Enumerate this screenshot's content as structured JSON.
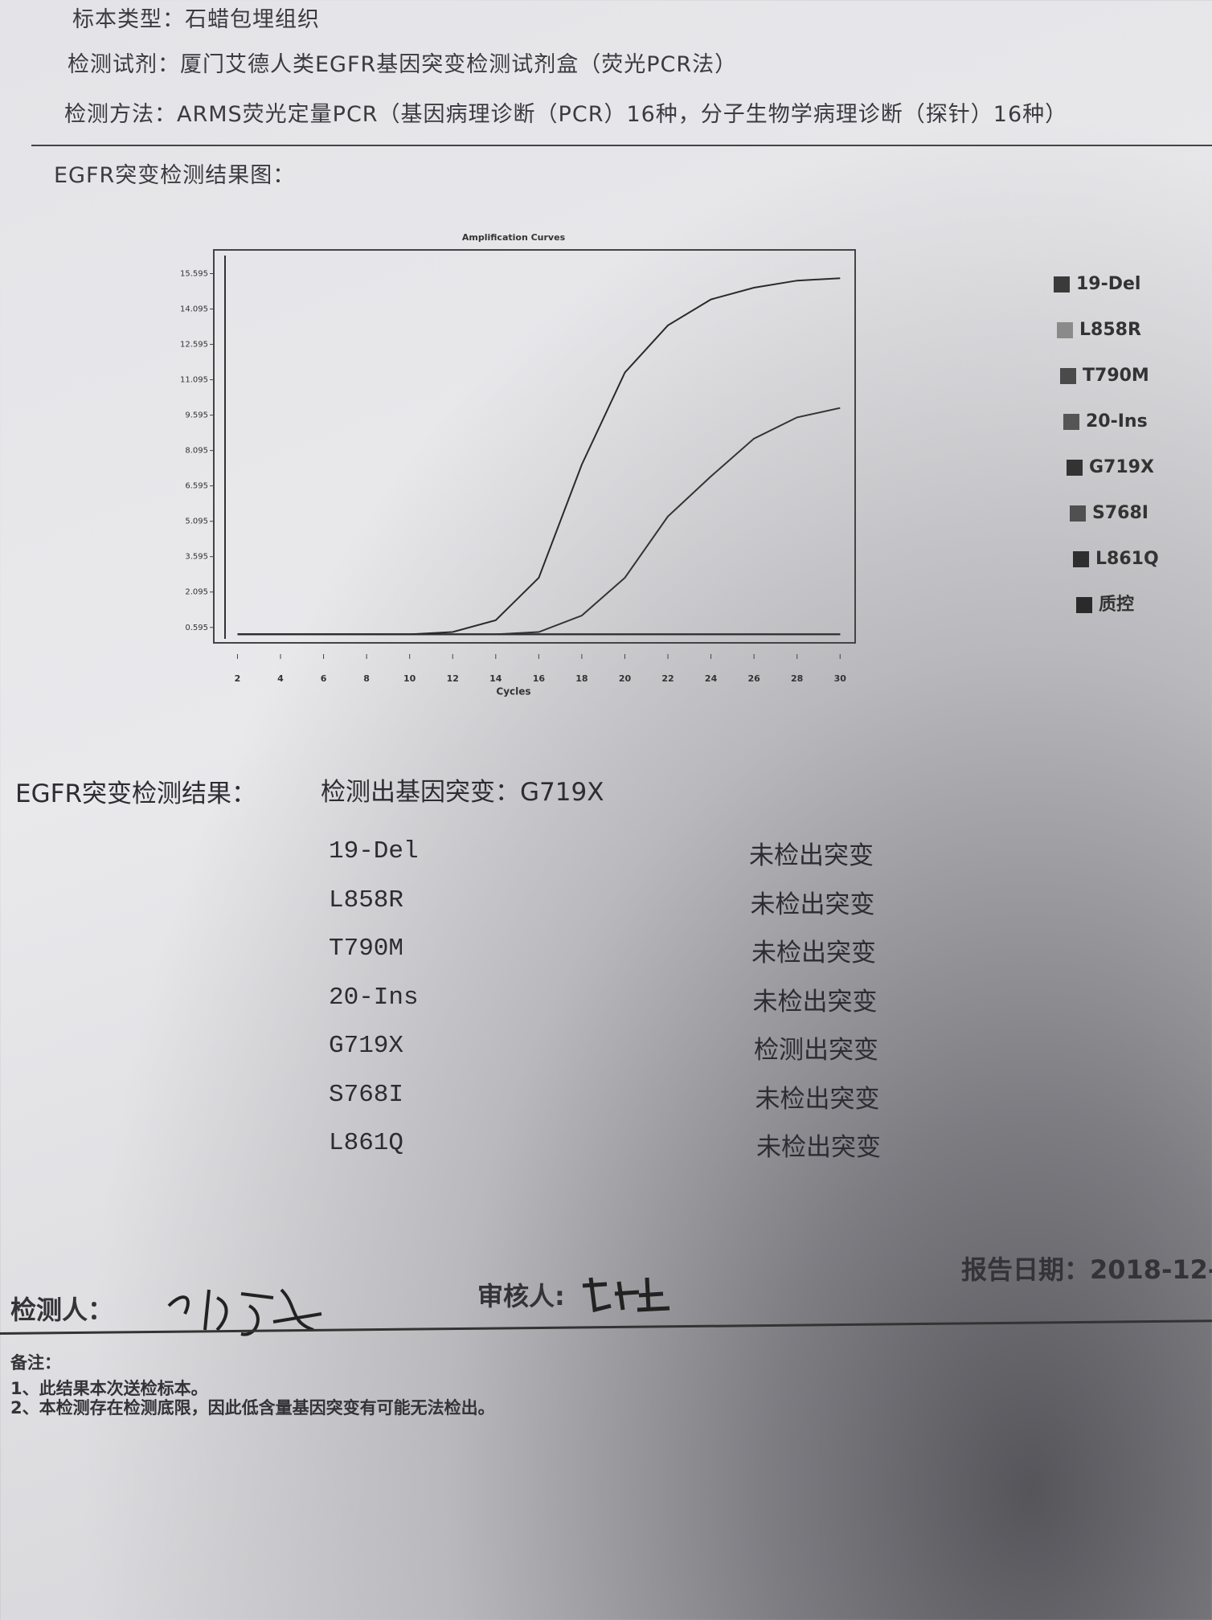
{
  "header": {
    "specimen_type": "标本类型：石蜡包埋组织",
    "reagent": "检测试剂：厦门艾德人类EGFR基因突变检测试剂盒（荧光PCR法）",
    "method": "检测方法：ARMS荧光定量PCR（基因病理诊断（PCR）16种，分子生物学病理诊断（探针）16种）"
  },
  "chart_heading": "EGFR突变检测结果图：",
  "chart_data": {
    "type": "line",
    "title": "Amplification Curves",
    "x_label": "Cycles",
    "x": [
      2,
      4,
      6,
      8,
      10,
      12,
      14,
      16,
      18,
      20,
      22,
      24,
      26,
      28,
      30
    ],
    "xlim": [
      0.9,
      30.7
    ],
    "xticks": [
      2,
      4,
      6,
      8,
      10,
      12,
      14,
      16,
      18,
      20,
      22,
      24,
      26,
      28,
      30
    ],
    "ylim": [
      -0.06,
      16.6
    ],
    "yticks": [
      0.595,
      2.095,
      3.595,
      5.095,
      6.595,
      8.095,
      9.595,
      11.095,
      12.595,
      14.095,
      15.595
    ],
    "grid": false,
    "legend": "right",
    "series": [
      {
        "name": "19-Del",
        "color": "#3a3a3a",
        "values": [
          0.3,
          0.3,
          0.3,
          0.3,
          0.3,
          0.3,
          0.3,
          0.3,
          0.3,
          0.3,
          0.3,
          0.3,
          0.3,
          0.3,
          0.3
        ]
      },
      {
        "name": "L858R",
        "color": "#8a8a8a",
        "values": [
          0.3,
          0.3,
          0.3,
          0.3,
          0.3,
          0.3,
          0.3,
          0.3,
          0.3,
          0.3,
          0.3,
          0.3,
          0.3,
          0.3,
          0.3
        ]
      },
      {
        "name": "T790M",
        "color": "#4a4a4a",
        "values": [
          0.3,
          0.3,
          0.3,
          0.3,
          0.3,
          0.3,
          0.3,
          0.3,
          0.3,
          0.3,
          0.3,
          0.3,
          0.3,
          0.3,
          0.3
        ]
      },
      {
        "name": "20-Ins",
        "color": "#555555",
        "values": [
          0.3,
          0.3,
          0.3,
          0.3,
          0.3,
          0.3,
          0.3,
          0.3,
          0.3,
          0.3,
          0.3,
          0.3,
          0.3,
          0.3,
          0.3
        ]
      },
      {
        "name": "G719X",
        "color": "#333333",
        "values": [
          0.3,
          0.3,
          0.3,
          0.3,
          0.3,
          0.3,
          0.3,
          0.4,
          1.1,
          2.7,
          5.3,
          7,
          8.6,
          9.5,
          9.9
        ]
      },
      {
        "name": "S768I",
        "color": "#505050",
        "values": [
          0.3,
          0.3,
          0.3,
          0.3,
          0.3,
          0.3,
          0.3,
          0.3,
          0.3,
          0.3,
          0.3,
          0.3,
          0.3,
          0.3,
          0.3
        ]
      },
      {
        "name": "L861Q",
        "color": "#2e2e2e",
        "values": [
          0.3,
          0.3,
          0.3,
          0.3,
          0.3,
          0.3,
          0.3,
          0.3,
          0.3,
          0.3,
          0.3,
          0.3,
          0.3,
          0.3,
          0.3
        ]
      },
      {
        "name": "质控",
        "color": "#2a2a2a",
        "values": [
          0.3,
          0.3,
          0.3,
          0.3,
          0.3,
          0.4,
          0.9,
          2.7,
          7.5,
          11.4,
          13.4,
          14.5,
          15,
          15.3,
          15.4
        ]
      }
    ]
  },
  "result": {
    "label": "EGFR突变检测结果：",
    "summary": "检测出基因突变：G719X"
  },
  "table": {
    "rows": [
      [
        "19-Del",
        "未检出突变"
      ],
      [
        "L858R",
        "未检出突变"
      ],
      [
        "T790M",
        "未检出突变"
      ],
      [
        "20-Ins",
        "未检出突变"
      ],
      [
        "G719X",
        "检测出突变"
      ],
      [
        "S768I",
        "未检出突变"
      ],
      [
        "L861Q",
        "未检出突变"
      ]
    ]
  },
  "footer": {
    "tester": "检测人：",
    "reviewer": "审核人:",
    "report_date": "报告日期：2018-12-"
  },
  "notes": [
    "备注：",
    "1、此结果本次送检标本。",
    "2、本检测存在检测底限，因此低含量基因突变有可能无法检出。"
  ]
}
